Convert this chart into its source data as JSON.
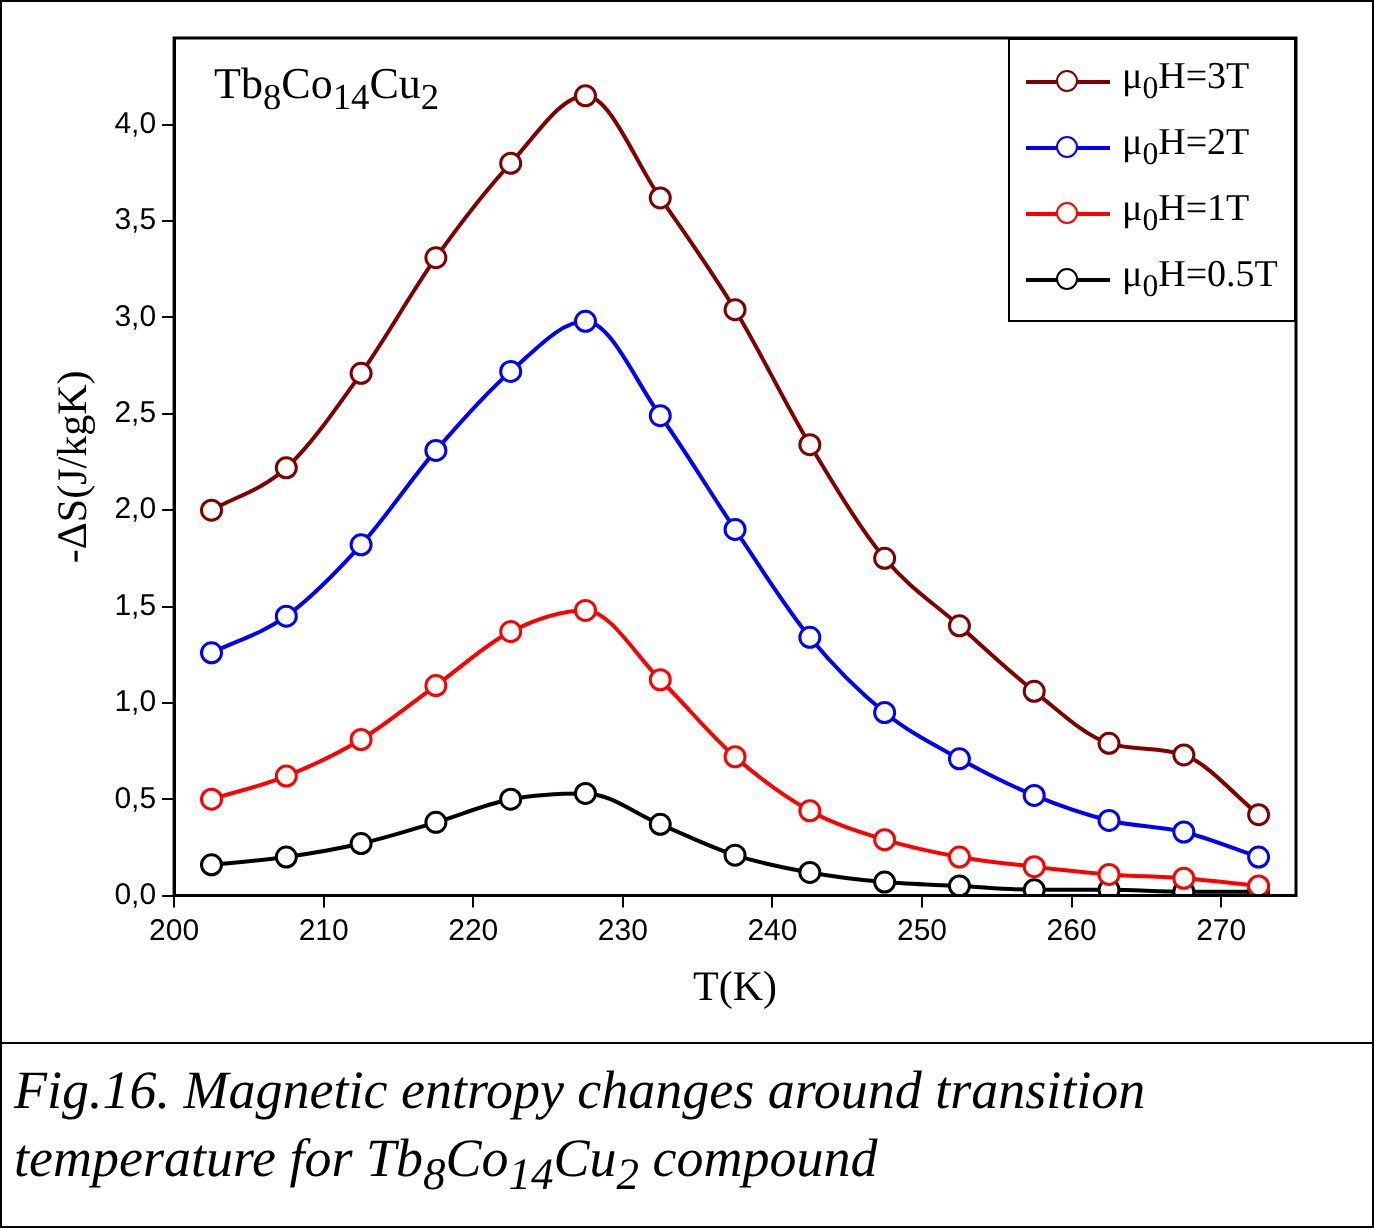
{
  "chart_data": {
    "type": "line",
    "xlabel": "T(K)",
    "ylabel": "-ΔS(J/kgK)",
    "annotations": [
      "Tb$_{8}$Co$_{14}$Cu$_{2}$",
      "Fig.16.  Magnetic entropy changes around transition temperature for Tb$_{8}$Co$_{14}$Cu$_{2}$ compound"
    ],
    "x": [
      202.5,
      207.5,
      212.5,
      217.5,
      222.5,
      227.5,
      232.5,
      237.5,
      242.5,
      247.5,
      252.5,
      257.5,
      262.5,
      267.5,
      272.5
    ],
    "series": [
      {
        "name": "μ$_{0}$H=3T",
        "color": "#800000",
        "values": [
          2.0,
          2.22,
          2.71,
          3.31,
          3.8,
          4.15,
          3.62,
          3.04,
          2.34,
          1.75,
          1.4,
          1.06,
          0.79,
          0.73,
          0.42
        ]
      },
      {
        "name": "μ$_{0}$H=2T",
        "color": "#0000ff",
        "values": [
          1.26,
          1.45,
          1.82,
          2.31,
          2.72,
          2.98,
          2.49,
          1.9,
          1.34,
          0.95,
          0.71,
          0.52,
          0.39,
          0.33,
          0.2
        ]
      },
      {
        "name": "μ$_{0}$H=1T",
        "color": "#ff0000",
        "values": [
          0.5,
          0.62,
          0.81,
          1.09,
          1.37,
          1.48,
          1.12,
          0.72,
          0.44,
          0.29,
          0.2,
          0.15,
          0.11,
          0.09,
          0.05
        ]
      },
      {
        "name": "μ$_{0}$H=0.5T",
        "color": "#000000",
        "values": [
          0.16,
          0.2,
          0.27,
          0.38,
          0.5,
          0.53,
          0.37,
          0.21,
          0.12,
          0.07,
          0.05,
          0.03,
          0.03,
          0.02,
          0.02
        ]
      }
    ],
    "xlim": [
      200,
      275
    ],
    "xticks": [
      200,
      210,
      220,
      230,
      240,
      250,
      260,
      270
    ],
    "ylim": [
      0,
      4.45
    ],
    "yticks": [
      {
        "value": 0,
        "label": "0,0"
      },
      {
        "value": 0.5,
        "label": "0,5"
      },
      {
        "value": 1,
        "label": "1,0"
      },
      {
        "value": 1.5,
        "label": "1,5"
      },
      {
        "value": 2,
        "label": "2,0"
      },
      {
        "value": 2.5,
        "label": "2,5"
      },
      {
        "value": 3,
        "label": "3,0"
      },
      {
        "value": 3.5,
        "label": "3,5"
      },
      {
        "value": 4,
        "label": "4,0"
      }
    ],
    "legend": "top right",
    "marker": "circle",
    "line_style": "solid"
  }
}
